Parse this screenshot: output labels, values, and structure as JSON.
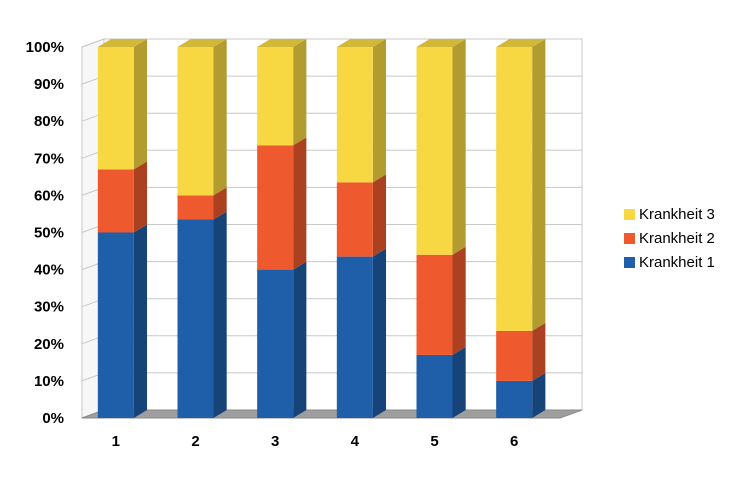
{
  "chart_data": {
    "type": "bar",
    "stacked": true,
    "normalized_percent": true,
    "style": "3d",
    "categories": [
      "1",
      "2",
      "3",
      "4",
      "5",
      "6"
    ],
    "series": [
      {
        "name": "Krankheit 1",
        "values": [
          50,
          53.5,
          40,
          43.5,
          17,
          10
        ]
      },
      {
        "name": "Krankheit 2",
        "values": [
          17,
          6.5,
          33.5,
          20,
          27,
          13.5
        ]
      },
      {
        "name": "Krankheit 3",
        "values": [
          33,
          40,
          26.5,
          36.5,
          56,
          76.5
        ]
      }
    ],
    "yticks": [
      "0%",
      "10%",
      "20%",
      "30%",
      "40%",
      "50%",
      "60%",
      "70%",
      "80%",
      "90%",
      "100%"
    ],
    "ylim": [
      0,
      100
    ],
    "grid": true,
    "legend_position": "right",
    "legend_order": [
      "Krankheit 3",
      "Krankheit 2",
      "Krankheit 1"
    ],
    "colors": {
      "Krankheit 1": "#1f5ea8",
      "Krankheit 2": "#ee5a2e",
      "Krankheit 3": "#f7d843"
    },
    "xlabel": "",
    "ylabel": "",
    "title": ""
  }
}
